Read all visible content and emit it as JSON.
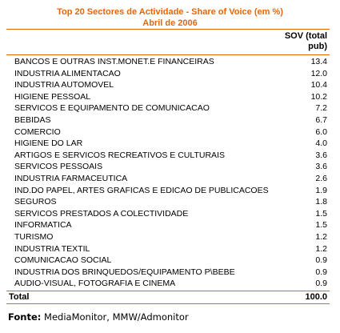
{
  "chart_data": {
    "type": "table",
    "title": "Top 20 Sectores de Actividade - Share of Voice (em %)",
    "subtitle": "Abril de 2006",
    "column_header": "SOV (total\npub)",
    "rows": [
      {
        "label": "BANCOS E OUTRAS INST.MONET.E FINANCEIRAS",
        "value": "13.4"
      },
      {
        "label": "INDUSTRIA ALIMENTACAO",
        "value": "12.0"
      },
      {
        "label": "INDUSTRIA AUTOMOVEL",
        "value": "10.4"
      },
      {
        "label": "HIGIENE PESSOAL",
        "value": "10.2"
      },
      {
        "label": "SERVICOS E EQUIPAMENTO DE COMUNICACAO",
        "value": "7.2"
      },
      {
        "label": "BEBIDAS",
        "value": "6.7"
      },
      {
        "label": "COMERCIO",
        "value": "6.0"
      },
      {
        "label": "HIGIENE DO LAR",
        "value": "4.0"
      },
      {
        "label": "ARTIGOS E SERVICOS RECREATIVOS E CULTURAIS",
        "value": "3.6"
      },
      {
        "label": "SERVICOS PESSOAIS",
        "value": "3.6"
      },
      {
        "label": "INDUSTRIA FARMACEUTICA",
        "value": "2.6"
      },
      {
        "label": "IND.DO PAPEL, ARTES GRAFICAS E EDICAO DE PUBLICACOES",
        "value": "1.9"
      },
      {
        "label": "SEGUROS",
        "value": "1.8"
      },
      {
        "label": "SERVICOS PRESTADOS A COLECTIVIDADE",
        "value": "1.5"
      },
      {
        "label": "INFORMATICA",
        "value": "1.5"
      },
      {
        "label": "TURISMO",
        "value": "1.2"
      },
      {
        "label": "INDUSTRIA TEXTIL",
        "value": "1.2"
      },
      {
        "label": "COMUNICACAO SOCIAL",
        "value": "0.9"
      },
      {
        "label": "INDUSTRIA DOS BRINQUEDOS/EQUIPAMENTO P\\BEBE",
        "value": "0.9"
      },
      {
        "label": "AUDIO-VISUAL, FOTOGRAFIA E CINEMA",
        "value": "0.9"
      }
    ],
    "total": {
      "label": "Total",
      "value": "100.0"
    },
    "source_label": "Fonte:",
    "source_text": "MediaMonitor, MMW/Admonitor",
    "colors": {
      "accent": "#e8650a"
    }
  }
}
